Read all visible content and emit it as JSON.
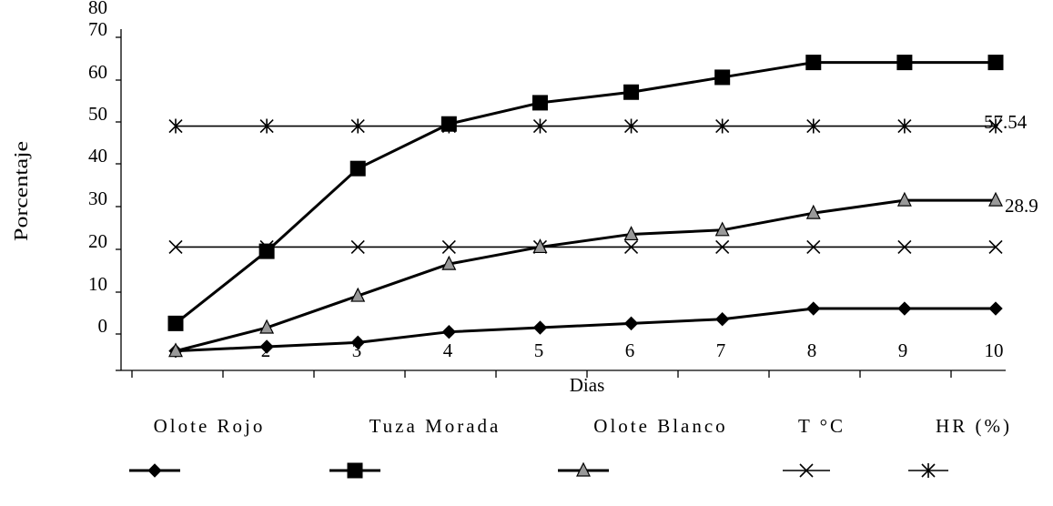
{
  "chart_data": {
    "type": "line",
    "title": "",
    "xlabel": "Dias",
    "ylabel": "Porcentaje",
    "x": [
      1,
      2,
      3,
      4,
      5,
      6,
      7,
      8,
      9,
      10
    ],
    "x_tick_labels": [
      "2",
      "3",
      "4",
      "5",
      "6",
      "7",
      "8",
      "9",
      "10"
    ],
    "y_tick_labels": [
      "0",
      "10",
      "20",
      "30",
      "40",
      "50",
      "60",
      "70",
      "80"
    ],
    "ylim": [
      0,
      80
    ],
    "series": [
      {
        "name": "Olote Rojo",
        "marker": "diamond",
        "marker_color": "#000000",
        "values": [
          0.5,
          1.5,
          2.5,
          5.0,
          6.0,
          7.0,
          8.0,
          10.5,
          10.5,
          10.5
        ]
      },
      {
        "name": "Tuza Morada",
        "marker": "square",
        "marker_color": "#000000",
        "values": [
          7.0,
          24.0,
          43.5,
          54.0,
          59.0,
          61.5,
          65.0,
          68.5,
          68.5,
          68.5
        ]
      },
      {
        "name": "Olote Blanco",
        "marker": "triangle",
        "marker_color": "#999999",
        "values": [
          0.5,
          6.0,
          13.5,
          21.0,
          25.0,
          28.0,
          29.0,
          33.0,
          36.0,
          36.0
        ]
      },
      {
        "name": "T °C",
        "marker": "x",
        "marker_color": "#000000",
        "values": [
          25,
          25,
          25,
          25,
          25,
          25,
          25,
          25,
          25,
          25
        ]
      },
      {
        "name": "HR (%)",
        "marker": "asterisk",
        "marker_color": "#000000",
        "values": [
          53.5,
          53.5,
          53.5,
          53.5,
          53.5,
          53.5,
          53.5,
          53.5,
          53.5,
          53.5
        ]
      }
    ],
    "annotations": [
      "57.54",
      "28.9"
    ],
    "grid": false,
    "legend_position": "bottom"
  }
}
